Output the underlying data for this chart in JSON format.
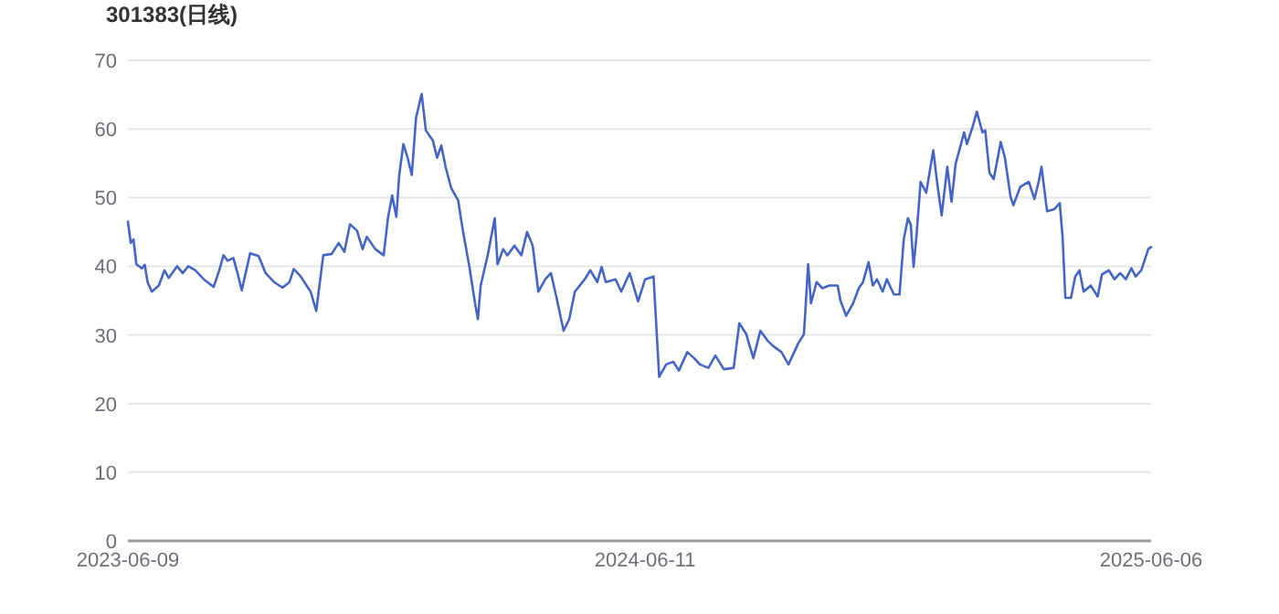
{
  "chart_data": {
    "type": "line",
    "title": "301383(日线)",
    "x": [
      "2023-06-09",
      "2023-06-11",
      "2023-06-13",
      "2023-06-15",
      "2023-06-19",
      "2023-06-21",
      "2023-06-23",
      "2023-06-26",
      "2023-07-01",
      "2023-07-05",
      "2023-07-08",
      "2023-07-14",
      "2023-07-18",
      "2023-07-22",
      "2023-07-27",
      "2023-08-02",
      "2023-08-09",
      "2023-08-13",
      "2023-08-16",
      "2023-08-19",
      "2023-08-23",
      "2023-08-26",
      "2023-08-29",
      "2023-09-04",
      "2023-09-10",
      "2023-09-15",
      "2023-09-21",
      "2023-09-27",
      "2023-10-02",
      "2023-10-05",
      "2023-10-10",
      "2023-10-17",
      "2023-10-21",
      "2023-10-26",
      "2023-11-01",
      "2023-11-06",
      "2023-11-10",
      "2023-11-14",
      "2023-11-19",
      "2023-11-23",
      "2023-11-26",
      "2023-12-02",
      "2023-12-08",
      "2023-12-11",
      "2023-12-14",
      "2023-12-17",
      "2023-12-19",
      "2023-12-22",
      "2023-12-25",
      "2023-12-28",
      "2023-12-31",
      "2024-01-04",
      "2024-01-07",
      "2024-01-12",
      "2024-01-15",
      "2024-01-18",
      "2024-01-21",
      "2024-01-25",
      "2024-01-30",
      "2024-02-02",
      "2024-02-07",
      "2024-02-11",
      "2024-02-13",
      "2024-02-15",
      "2024-02-20",
      "2024-02-25",
      "2024-02-27",
      "2024-03-02",
      "2024-03-05",
      "2024-03-10",
      "2024-03-15",
      "2024-03-19",
      "2024-03-23",
      "2024-03-27",
      "2024-04-01",
      "2024-04-05",
      "2024-04-09",
      "2024-04-14",
      "2024-04-18",
      "2024-04-22",
      "2024-04-29",
      "2024-05-03",
      "2024-05-08",
      "2024-05-11",
      "2024-05-14",
      "2024-05-21",
      "2024-05-25",
      "2024-05-31",
      "2024-06-06",
      "2024-06-11",
      "2024-06-17",
      "2024-06-21",
      "2024-06-26",
      "2024-07-01",
      "2024-07-05",
      "2024-07-11",
      "2024-07-16",
      "2024-07-20",
      "2024-07-26",
      "2024-07-31",
      "2024-08-06",
      "2024-08-13",
      "2024-08-17",
      "2024-08-22",
      "2024-08-27",
      "2024-09-01",
      "2024-09-06",
      "2024-09-10",
      "2024-09-16",
      "2024-09-21",
      "2024-09-28",
      "2024-10-02",
      "2024-10-05",
      "2024-10-07",
      "2024-10-11",
      "2024-10-15",
      "2024-10-20",
      "2024-10-26",
      "2024-10-28",
      "2024-11-01",
      "2024-11-06",
      "2024-11-10",
      "2024-11-13",
      "2024-11-17",
      "2024-11-20",
      "2024-11-23",
      "2024-11-27",
      "2024-11-30",
      "2024-12-05",
      "2024-12-09",
      "2024-12-12",
      "2024-12-15",
      "2024-12-17",
      "2024-12-19",
      "2024-12-21",
      "2024-12-24",
      "2024-12-28",
      "2025-01-02",
      "2025-01-05",
      "2025-01-08",
      "2025-01-12",
      "2025-01-15",
      "2025-01-18",
      "2025-01-24",
      "2025-01-26",
      "2025-01-30",
      "2025-02-02",
      "2025-02-06",
      "2025-02-08",
      "2025-02-11",
      "2025-02-14",
      "2025-02-19",
      "2025-02-22",
      "2025-02-26",
      "2025-02-28",
      "2025-03-05",
      "2025-03-11",
      "2025-03-15",
      "2025-03-18",
      "2025-03-20",
      "2025-03-24",
      "2025-03-29",
      "2025-04-02",
      "2025-04-04",
      "2025-04-06",
      "2025-04-10",
      "2025-04-13",
      "2025-04-16",
      "2025-04-19",
      "2025-04-24",
      "2025-04-29",
      "2025-05-02",
      "2025-05-07",
      "2025-05-11",
      "2025-05-15",
      "2025-05-19",
      "2025-05-23",
      "2025-05-26",
      "2025-05-30",
      "2025-06-04",
      "2025-06-06"
    ],
    "series": [
      {
        "color": "#4565c4",
        "values": [
          46.5,
          43.4,
          43.9,
          40.3,
          39.7,
          40.2,
          37.7,
          36.3,
          37.2,
          39.4,
          38.3,
          40.0,
          39.0,
          40.0,
          39.4,
          38.1,
          37.0,
          39.4,
          41.6,
          40.8,
          41.2,
          39.0,
          36.5,
          41.9,
          41.5,
          39.0,
          37.7,
          36.9,
          37.7,
          39.6,
          38.5,
          36.3,
          33.5,
          41.6,
          41.8,
          43.4,
          42.1,
          46.1,
          45.2,
          42.5,
          44.3,
          42.5,
          41.6,
          47.0,
          50.3,
          47.2,
          53.2,
          57.8,
          55.8,
          53.3,
          61.6,
          65.1,
          59.8,
          58.3,
          55.8,
          57.6,
          54.5,
          51.4,
          49.6,
          45.6,
          39.9,
          34.6,
          32.3,
          37.2,
          41.6,
          47.0,
          40.3,
          42.5,
          41.6,
          43.0,
          41.6,
          45.0,
          43.0,
          36.3,
          38.1,
          39.0,
          35.4,
          30.6,
          32.3,
          36.3,
          38.1,
          39.4,
          37.7,
          39.9,
          37.7,
          38.1,
          36.3,
          39.0,
          34.9,
          38.1,
          38.5,
          23.9,
          25.7,
          26.1,
          24.8,
          27.5,
          26.6,
          25.7,
          25.2,
          27.0,
          25.0,
          25.2,
          31.7,
          30.1,
          26.6,
          30.6,
          29.2,
          28.4,
          27.5,
          25.7,
          28.8,
          30.1,
          40.3,
          34.6,
          37.7,
          36.8,
          37.2,
          37.2,
          35.0,
          32.8,
          34.6,
          36.8,
          37.7,
          40.6,
          37.2,
          38.1,
          36.3,
          38.1,
          35.9,
          35.9,
          43.9,
          47.0,
          46.1,
          39.9,
          44.3,
          52.3,
          50.7,
          56.9,
          51.8,
          47.4,
          54.5,
          49.4,
          55.0,
          59.5,
          57.8,
          60.3,
          62.5,
          59.5,
          59.8,
          53.6,
          52.7,
          58.1,
          55.8,
          50.1,
          48.9,
          51.6,
          52.3,
          49.8,
          52.3,
          54.5,
          48.0,
          48.3,
          49.2,
          44.3,
          35.4,
          35.4,
          38.5,
          39.4,
          36.3,
          37.2,
          35.6,
          38.8,
          39.4,
          38.1,
          39.0,
          38.1,
          39.7,
          38.5,
          39.4,
          42.5,
          42.8
        ]
      }
    ],
    "xlim": [
      "2023-06-09",
      "2025-06-06"
    ],
    "xticks": [
      "2023-06-09",
      "2024-06-11",
      "2025-06-06"
    ],
    "ylim": [
      0,
      70
    ],
    "yticks": [
      0,
      10,
      20,
      30,
      40,
      50,
      60,
      70
    ],
    "grid": "y",
    "marker": "none",
    "line_style": "solid"
  }
}
